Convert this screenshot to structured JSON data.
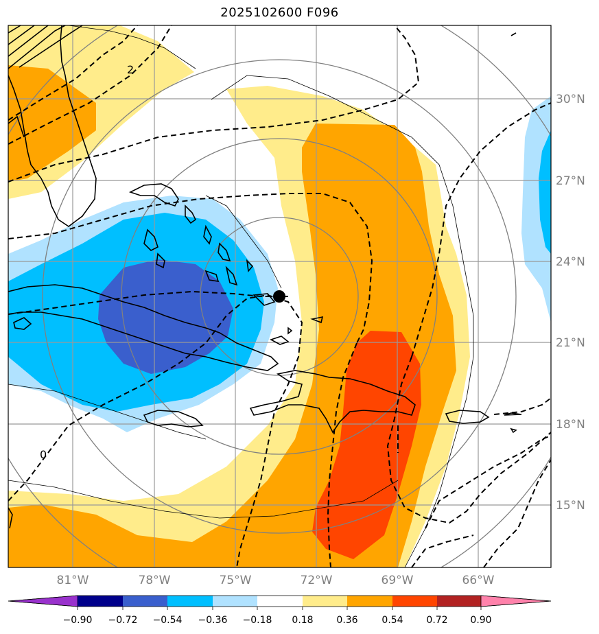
{
  "title": "2025102600 F096",
  "lat_labels": [
    "30°N",
    "27°N",
    "24°N",
    "21°N",
    "18°N",
    "15°N"
  ],
  "lon_labels": [
    "81°W",
    "78°W",
    "75°W",
    "72°W",
    "69°W",
    "66°W"
  ],
  "contour_labels": [
    "2",
    "0"
  ],
  "colorbar": {
    "tick_labels": [
      "−0.90",
      "−0.72",
      "−0.54",
      "−0.36",
      "−0.18",
      "0.18",
      "0.36",
      "0.54",
      "0.72",
      "0.90"
    ],
    "colors": [
      "#9932cc",
      "#00008b",
      "#3a5fcd",
      "#00bfff",
      "#b0e2ff",
      "#ffffff",
      "#ffec8b",
      "#ffa500",
      "#ff4500",
      "#b22222",
      "#ff82ab"
    ]
  },
  "fill_colors": {
    "light_yellow": "#ffec8b",
    "orange": "#ffa500",
    "red_orange": "#ff4500",
    "light_blue": "#b0e2ff",
    "deep_sky_blue": "#00bfff",
    "royal_blue": "#3a5fcd"
  },
  "center_marker": "storm-center-dot"
}
